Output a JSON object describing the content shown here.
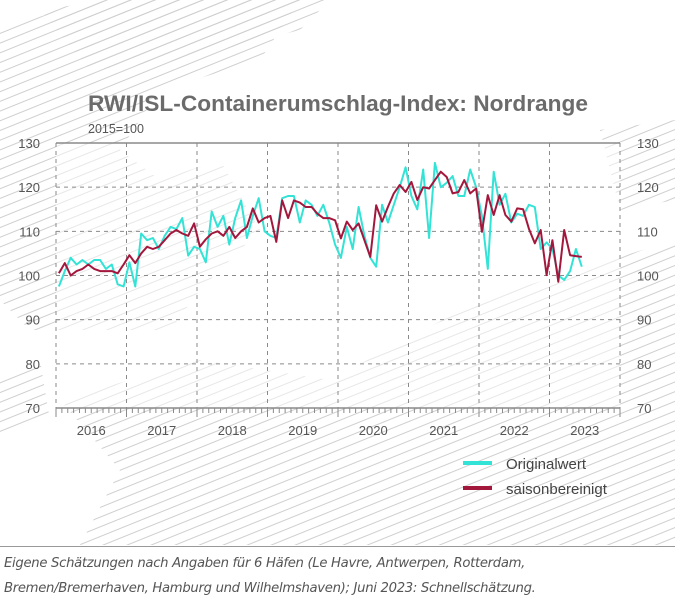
{
  "chart_data": {
    "type": "line",
    "title": "RWI/ISL-Containerumschlag-Index: Nordrange",
    "subtitle": "2015=100",
    "xlabel": "",
    "ylabel": "",
    "ylim": [
      70,
      130
    ],
    "yticks": [
      "130",
      "120",
      "110",
      "100",
      "90",
      "80",
      "70"
    ],
    "year_labels": [
      "2016",
      "2017",
      "2018",
      "2019",
      "2020",
      "2021",
      "2022",
      "2023"
    ],
    "x_range": [
      "2016-01",
      "2023-12"
    ],
    "x_start": "2016-01",
    "frequency": "monthly",
    "grid": true,
    "legend_position": "bottom-right",
    "series": [
      {
        "name": "Originalwert",
        "color": "#33e3d6",
        "values": [
          97.5,
          101,
          104,
          102.5,
          103.5,
          102.5,
          103.5,
          103.5,
          101.5,
          102.5,
          98,
          97.5,
          103,
          97.5,
          109.5,
          108,
          108.5,
          106,
          109,
          111,
          110.5,
          113,
          104.5,
          106.5,
          106,
          103,
          114.5,
          111,
          113.5,
          107,
          113,
          117,
          108.5,
          113.5,
          117.5,
          110,
          109,
          108.5,
          117.5,
          118,
          118,
          112,
          117,
          116,
          113.5,
          116,
          112,
          107,
          104,
          111,
          106,
          115.5,
          109,
          104,
          102,
          116,
          112,
          116,
          120,
          124.5,
          118,
          115,
          124,
          108.5,
          125.5,
          120,
          121,
          122.5,
          118,
          118,
          124,
          120,
          113.5,
          101.5,
          123.5,
          116,
          118.5,
          112,
          114,
          113.5,
          116,
          115.5,
          106,
          107.5,
          106,
          100,
          99,
          101,
          106,
          102
        ]
      },
      {
        "name": "saisonbereinigt",
        "color": "#a3173d",
        "values": [
          100.5,
          102.8,
          100,
          101,
          101.5,
          102.5,
          101.5,
          101,
          101,
          101,
          100.5,
          102.5,
          104.6,
          102.8,
          105,
          106.5,
          106,
          106.5,
          108,
          109.5,
          110.3,
          109.5,
          109,
          111.8,
          106.5,
          108.2,
          109.5,
          110,
          109,
          111,
          108.5,
          110,
          111,
          115.2,
          112,
          113,
          113.5,
          107.6,
          117,
          113,
          117,
          116.5,
          115.5,
          115.5,
          114,
          113,
          113,
          112.5,
          108.4,
          112.2,
          110.3,
          111.8,
          108,
          104.2,
          115.9,
          112.2,
          115.5,
          118.6,
          120.5,
          118.9,
          121.2,
          117.1,
          120,
          119.7,
          121.6,
          123.5,
          122.3,
          118.6,
          118.9,
          121.6,
          118.6,
          119.7,
          109.9,
          118.2,
          113.7,
          118.2,
          113.7,
          112.2,
          115.2,
          115,
          110.6,
          107.3,
          110.3,
          100.1,
          108,
          98.6,
          110.3,
          104.6,
          104.4,
          104.2
        ]
      }
    ]
  },
  "footer": {
    "line1": "Eigene Schätzungen nach Angaben für 6 Häfen (Le Havre, Antwerpen, Rotterdam,",
    "line2": "Bremen/Bremerhaven, Hamburg und Wilhelmshaven); Juni 2023: Schnellschätzung."
  }
}
